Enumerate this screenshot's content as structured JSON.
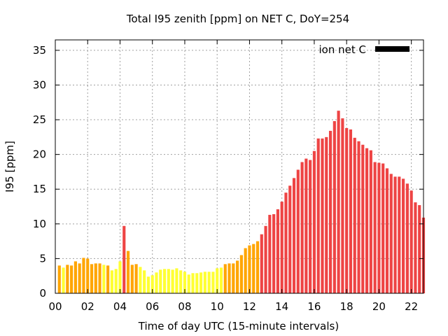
{
  "chart_data": {
    "type": "bar",
    "title": "Total I95 zenith [ppm] on NET C, DoY=254",
    "xlabel": "Time of day UTC (15-minute intervals)",
    "ylabel": "I95 [ppm]",
    "xlim": [
      0,
      22.75
    ],
    "ylim": [
      0,
      36.5
    ],
    "x_ticks": [
      "00",
      "02",
      "04",
      "06",
      "08",
      "10",
      "12",
      "14",
      "16",
      "18",
      "20",
      "22"
    ],
    "x_tick_values": [
      0,
      2,
      4,
      6,
      8,
      10,
      12,
      14,
      16,
      18,
      20,
      22
    ],
    "y_ticks": [
      0,
      5,
      10,
      15,
      20,
      25,
      30,
      35
    ],
    "grid": true,
    "legend": {
      "label": "ion net C",
      "color": "#000000",
      "placement": "top-right"
    },
    "bar_start_hour": 0.25,
    "bar_step_hours": 0.25,
    "colors": {
      "yellow": "#ffff33",
      "orange": "#ffa500",
      "red": "#ee4444"
    },
    "values": [
      4.0,
      3.7,
      4.1,
      4.0,
      4.6,
      4.3,
      5.1,
      5.0,
      4.2,
      4.3,
      4.3,
      4.1,
      4.0,
      3.3,
      3.5,
      4.6,
      9.7,
      6.1,
      4.1,
      4.2,
      3.8,
      3.3,
      2.4,
      2.6,
      3.0,
      3.4,
      3.5,
      3.5,
      3.4,
      3.6,
      3.3,
      3.1,
      2.7,
      2.9,
      2.9,
      3.0,
      3.1,
      3.1,
      3.1,
      3.6,
      3.7,
      4.2,
      4.3,
      4.3,
      4.7,
      5.5,
      6.5,
      6.9,
      7.1,
      7.5,
      8.5,
      9.7,
      11.3,
      11.4,
      12.1,
      13.2,
      14.5,
      15.5,
      16.6,
      17.8,
      18.9,
      19.4,
      19.2,
      20.5,
      22.3,
      22.3,
      22.5,
      23.4,
      24.8,
      26.3,
      25.2,
      23.8,
      23.6,
      22.4,
      21.9,
      21.4,
      20.9,
      20.6,
      18.9,
      18.8,
      18.7,
      18.0,
      17.2,
      16.8,
      16.8,
      16.5,
      15.8,
      14.8,
      13.1,
      12.7,
      10.9
    ],
    "value_colors": [
      "orange",
      "yellow",
      "orange",
      "orange",
      "orange",
      "orange",
      "orange",
      "orange",
      "orange",
      "orange",
      "orange",
      "yellow",
      "orange",
      "yellow",
      "yellow",
      "yellow",
      "red",
      "orange",
      "orange",
      "orange",
      "yellow",
      "yellow",
      "yellow",
      "yellow",
      "yellow",
      "yellow",
      "yellow",
      "yellow",
      "yellow",
      "yellow",
      "yellow",
      "yellow",
      "yellow",
      "yellow",
      "yellow",
      "yellow",
      "yellow",
      "yellow",
      "yellow",
      "yellow",
      "yellow",
      "orange",
      "orange",
      "orange",
      "orange",
      "orange",
      "orange",
      "orange",
      "orange",
      "orange",
      "red",
      "red",
      "red",
      "red",
      "red",
      "red",
      "red",
      "red",
      "red",
      "red",
      "red",
      "red",
      "red",
      "red",
      "red",
      "red",
      "red",
      "red",
      "red",
      "red",
      "red",
      "red",
      "red",
      "red",
      "red",
      "red",
      "red",
      "red",
      "red",
      "red",
      "red",
      "red",
      "red",
      "red",
      "red",
      "red",
      "red",
      "red",
      "red",
      "red",
      "red"
    ]
  }
}
